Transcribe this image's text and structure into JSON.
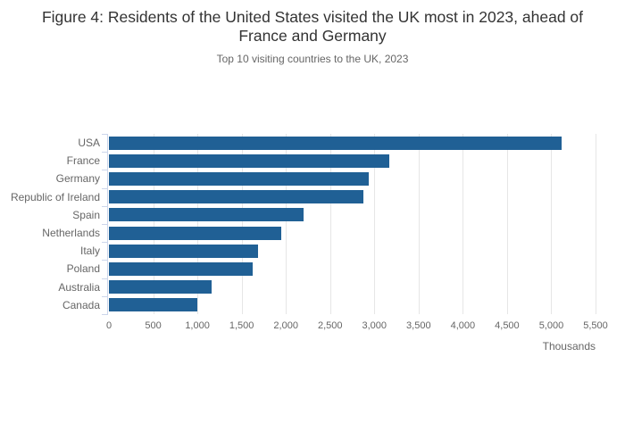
{
  "chart_data": {
    "type": "bar",
    "orientation": "horizontal",
    "title": "Figure 4: Residents of the United States visited the UK most in 2023, ahead of France and Germany",
    "subtitle": "Top 10 visiting countries to the UK, 2023",
    "categories": [
      "USA",
      "France",
      "Germany",
      "Republic of Ireland",
      "Spain",
      "Netherlands",
      "Italy",
      "Poland",
      "Australia",
      "Canada"
    ],
    "values": [
      5120,
      3170,
      2940,
      2880,
      2200,
      1950,
      1690,
      1620,
      1160,
      1000
    ],
    "xlabel": "Thousands",
    "ylabel": "",
    "xlim": [
      0,
      5500
    ],
    "xticks": [
      0,
      500,
      1000,
      1500,
      2000,
      2500,
      3000,
      3500,
      4000,
      4500,
      5000,
      5500
    ],
    "xtick_labels": [
      "0",
      "500",
      "1,000",
      "1,500",
      "2,000",
      "2,500",
      "3,000",
      "3,500",
      "4,000",
      "4,500",
      "5,000",
      "5,500"
    ],
    "grid": "vertical-gridlines-on",
    "legend": "none",
    "bar_color": "#206095",
    "axis_color": "#ccd6eb",
    "gridline_color": "#e6e6e6",
    "title_color": "#333333",
    "label_color": "#666666"
  }
}
